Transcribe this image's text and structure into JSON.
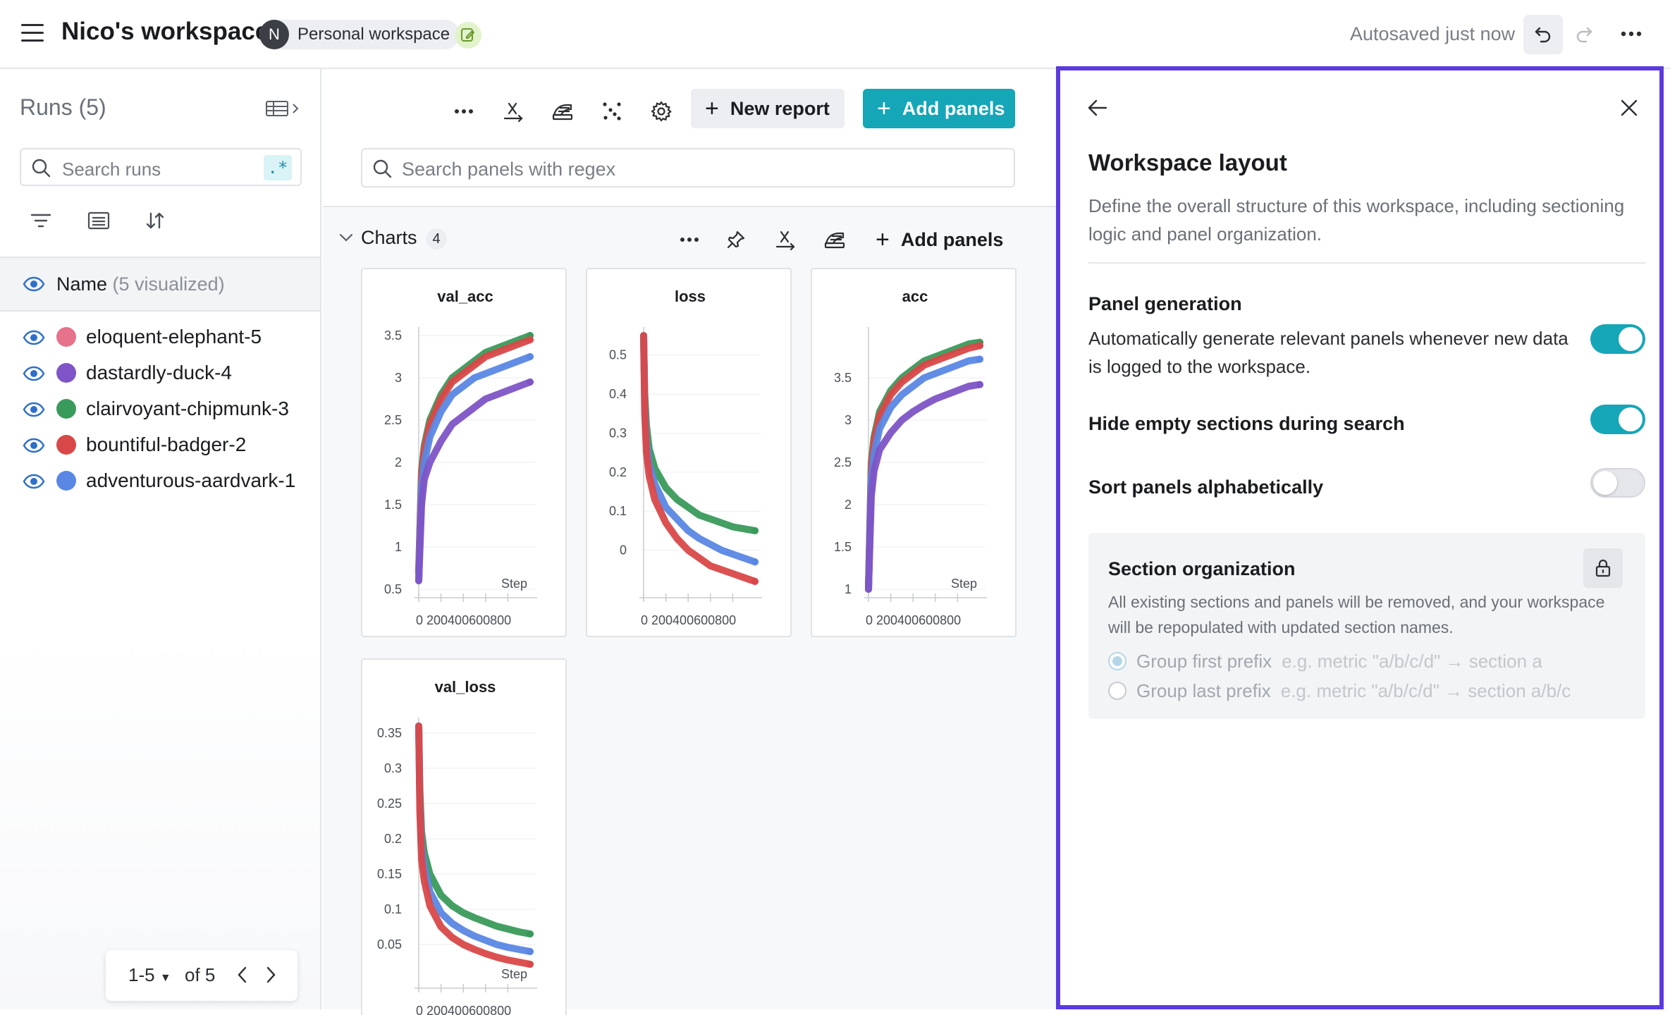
{
  "header": {
    "workspace_title": "Nico's workspace",
    "avatar_initial": "N",
    "workspace_chip_label": "Personal workspace",
    "autosave_status": "Autosaved just now"
  },
  "sidebar": {
    "runs_title": "Runs (5)",
    "search": {
      "placeholder": "Search runs",
      "regex_label": ".*"
    },
    "name_column": {
      "label": "Name",
      "visualized": "(5 visualized)"
    },
    "runs": [
      {
        "name": "eloquent-elephant-5",
        "color": "#e6728c"
      },
      {
        "name": "dastardly-duck-4",
        "color": "#7e54c6"
      },
      {
        "name": "clairvoyant-chipmunk-3",
        "color": "#3a9a5b"
      },
      {
        "name": "bountiful-badger-2",
        "color": "#d94848"
      },
      {
        "name": "adventurous-aardvark-1",
        "color": "#5a87e4"
      }
    ],
    "pagination": {
      "range": "1-5",
      "total": "of 5"
    }
  },
  "toolbar": {
    "new_report_label": "New report",
    "add_panels_label": "Add panels",
    "search_placeholder": "Search panels with regex"
  },
  "section": {
    "title": "Charts",
    "count": "4",
    "add_panels_label": "Add panels"
  },
  "chart_data": [
    {
      "type": "line",
      "title": "val_acc",
      "xlabel": "Step",
      "xlim": [
        0,
        1000
      ],
      "ylim": [
        0.5,
        3.5
      ],
      "y_ticks": [
        "0.5",
        "1",
        "1.5",
        "2",
        "2.5",
        "3",
        "3.5"
      ],
      "x_ticks": [
        "0",
        "200",
        "400",
        "600",
        "800"
      ],
      "series": [
        {
          "color": "#3a9a5b",
          "x": [
            0,
            25,
            50,
            100,
            200,
            300,
            400,
            500,
            600,
            700,
            800,
            900,
            1000
          ],
          "y": [
            0.7,
            1.9,
            2.2,
            2.5,
            2.8,
            3.0,
            3.1,
            3.2,
            3.3,
            3.35,
            3.4,
            3.45,
            3.5
          ]
        },
        {
          "color": "#d94848",
          "x": [
            0,
            25,
            50,
            100,
            200,
            300,
            400,
            500,
            600,
            700,
            800,
            900,
            1000
          ],
          "y": [
            0.7,
            1.85,
            2.15,
            2.45,
            2.75,
            2.95,
            3.05,
            3.15,
            3.25,
            3.3,
            3.35,
            3.4,
            3.45
          ]
        },
        {
          "color": "#5a87e4",
          "x": [
            0,
            25,
            50,
            100,
            200,
            300,
            400,
            500,
            600,
            700,
            800,
            900,
            1000
          ],
          "y": [
            0.6,
            1.7,
            2.0,
            2.3,
            2.6,
            2.8,
            2.9,
            3.0,
            3.05,
            3.1,
            3.15,
            3.2,
            3.25
          ]
        },
        {
          "color": "#7e54c6",
          "x": [
            0,
            25,
            50,
            100,
            200,
            300,
            400,
            500,
            600,
            700,
            800,
            900,
            1000
          ],
          "y": [
            0.6,
            1.5,
            1.8,
            2.0,
            2.25,
            2.45,
            2.55,
            2.65,
            2.75,
            2.8,
            2.85,
            2.9,
            2.95
          ]
        }
      ]
    },
    {
      "type": "line",
      "title": "loss",
      "xlabel": "",
      "xlim": [
        0,
        1000
      ],
      "ylim": [
        -0.1,
        0.55
      ],
      "y_ticks": [
        "0",
        "0.1",
        "0.2",
        "0.3",
        "0.4",
        "0.5"
      ],
      "x_ticks": [
        "0",
        "200",
        "400",
        "600",
        "800"
      ],
      "series": [
        {
          "color": "#3a9a5b",
          "x": [
            0,
            10,
            25,
            50,
            100,
            200,
            300,
            400,
            500,
            600,
            700,
            800,
            900,
            1000
          ],
          "y": [
            0.55,
            0.4,
            0.32,
            0.26,
            0.21,
            0.16,
            0.13,
            0.11,
            0.09,
            0.08,
            0.07,
            0.06,
            0.055,
            0.05
          ]
        },
        {
          "color": "#5a87e4",
          "x": [
            0,
            10,
            25,
            50,
            100,
            200,
            300,
            400,
            500,
            600,
            700,
            800,
            900,
            1000
          ],
          "y": [
            0.55,
            0.37,
            0.28,
            0.22,
            0.17,
            0.11,
            0.08,
            0.05,
            0.03,
            0.015,
            0.0,
            -0.01,
            -0.02,
            -0.03
          ]
        },
        {
          "color": "#d94848",
          "x": [
            0,
            10,
            25,
            50,
            100,
            200,
            300,
            400,
            500,
            600,
            700,
            800,
            900,
            1000
          ],
          "y": [
            0.55,
            0.35,
            0.25,
            0.19,
            0.13,
            0.07,
            0.03,
            0.0,
            -0.02,
            -0.04,
            -0.05,
            -0.06,
            -0.07,
            -0.08
          ]
        }
      ]
    },
    {
      "type": "line",
      "title": "acc",
      "xlabel": "Step",
      "xlim": [
        0,
        1000
      ],
      "ylim": [
        1,
        4
      ],
      "y_ticks": [
        "1",
        "1.5",
        "2",
        "2.5",
        "3",
        "3.5"
      ],
      "x_ticks": [
        "0",
        "200",
        "400",
        "600",
        "800"
      ],
      "series": [
        {
          "color": "#3a9a5b",
          "x": [
            0,
            25,
            50,
            100,
            200,
            300,
            400,
            500,
            600,
            700,
            800,
            900,
            1000
          ],
          "y": [
            1.0,
            2.5,
            2.8,
            3.1,
            3.35,
            3.5,
            3.6,
            3.7,
            3.75,
            3.8,
            3.85,
            3.9,
            3.92
          ]
        },
        {
          "color": "#d94848",
          "x": [
            0,
            25,
            50,
            100,
            200,
            300,
            400,
            500,
            600,
            700,
            800,
            900,
            1000
          ],
          "y": [
            1.0,
            2.45,
            2.75,
            3.05,
            3.3,
            3.45,
            3.55,
            3.65,
            3.7,
            3.75,
            3.8,
            3.85,
            3.88
          ]
        },
        {
          "color": "#5a87e4",
          "x": [
            0,
            25,
            50,
            100,
            200,
            300,
            400,
            500,
            600,
            700,
            800,
            900,
            1000
          ],
          "y": [
            1.0,
            2.3,
            2.6,
            2.9,
            3.15,
            3.3,
            3.4,
            3.5,
            3.55,
            3.6,
            3.65,
            3.7,
            3.72
          ]
        },
        {
          "color": "#7e54c6",
          "x": [
            0,
            25,
            50,
            100,
            200,
            300,
            400,
            500,
            600,
            700,
            800,
            900,
            1000
          ],
          "y": [
            1.0,
            2.1,
            2.4,
            2.65,
            2.85,
            3.0,
            3.1,
            3.18,
            3.25,
            3.3,
            3.35,
            3.4,
            3.42
          ]
        }
      ]
    },
    {
      "type": "line",
      "title": "val_loss",
      "xlabel": "Step",
      "xlim": [
        0,
        1000
      ],
      "ylim": [
        0,
        0.36
      ],
      "y_ticks": [
        "0.05",
        "0.1",
        "0.15",
        "0.2",
        "0.25",
        "0.3",
        "0.35"
      ],
      "x_ticks": [
        "0",
        "200",
        "400",
        "600",
        "800"
      ],
      "series": [
        {
          "color": "#3a9a5b",
          "x": [
            0,
            10,
            25,
            50,
            100,
            200,
            300,
            400,
            500,
            600,
            700,
            800,
            900,
            1000
          ],
          "y": [
            0.36,
            0.27,
            0.21,
            0.18,
            0.15,
            0.12,
            0.105,
            0.095,
            0.088,
            0.082,
            0.076,
            0.072,
            0.068,
            0.065
          ]
        },
        {
          "color": "#5a87e4",
          "x": [
            0,
            10,
            25,
            50,
            100,
            200,
            300,
            400,
            500,
            600,
            700,
            800,
            900,
            1000
          ],
          "y": [
            0.36,
            0.25,
            0.19,
            0.16,
            0.125,
            0.095,
            0.08,
            0.07,
            0.062,
            0.056,
            0.05,
            0.046,
            0.043,
            0.04
          ]
        },
        {
          "color": "#d94848",
          "x": [
            0,
            10,
            25,
            50,
            100,
            200,
            300,
            400,
            500,
            600,
            700,
            800,
            900,
            1000
          ],
          "y": [
            0.36,
            0.24,
            0.17,
            0.14,
            0.105,
            0.075,
            0.06,
            0.05,
            0.043,
            0.037,
            0.032,
            0.028,
            0.025,
            0.022
          ]
        }
      ]
    }
  ],
  "layout_panel": {
    "title": "Workspace layout",
    "description": "Define the overall structure of this workspace, including sectioning logic and panel organization.",
    "panel_generation": {
      "title": "Panel generation",
      "description": "Automatically generate relevant panels whenever new data is logged to the workspace.",
      "enabled": true
    },
    "hide_empty": {
      "title": "Hide empty sections during search",
      "enabled": true
    },
    "sort_alpha": {
      "title": "Sort panels alphabetically",
      "enabled": false
    },
    "section_org": {
      "title": "Section organization",
      "description": "All existing sections and panels will be removed, and your workspace will be repopulated with updated section names.",
      "options": [
        {
          "label": "Group first prefix",
          "example": "e.g. metric \"a/b/c/d\" → section a",
          "selected": true
        },
        {
          "label": "Group last prefix",
          "example": "e.g. metric \"a/b/c/d\" → section a/b/c",
          "selected": false
        }
      ]
    }
  }
}
